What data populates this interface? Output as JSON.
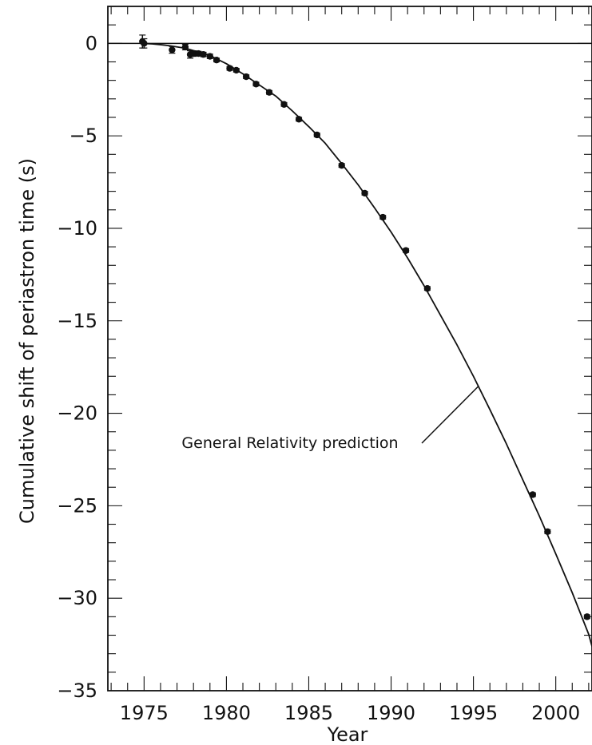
{
  "chart_data": {
    "type": "scatter",
    "title": "",
    "xlabel": "Year",
    "ylabel": "Cumulative shift of periastron time (s)",
    "xlim": [
      1972.8,
      2002.2
    ],
    "ylim": [
      -35,
      2
    ],
    "x_ticks": [
      1975,
      1980,
      1985,
      1990,
      1995,
      2000
    ],
    "x_tick_labels": [
      "1975",
      "1980",
      "1985",
      "1990",
      "1995",
      "2000"
    ],
    "y_ticks": [
      0,
      -5,
      -10,
      -15,
      -20,
      -25,
      -30,
      -35
    ],
    "y_tick_labels": [
      "0",
      "−5",
      "−10",
      "−15",
      "−20",
      "−25",
      "−30",
      "−35"
    ],
    "grid": false,
    "reference_line": {
      "y": 0
    },
    "annotation": {
      "text": "General Relativity prediction",
      "target_x": 1995.3
    },
    "observations": [
      {
        "x": 1974.9,
        "y": 0.1,
        "yerr": 0.35
      },
      {
        "x": 1975.0,
        "y": 0.0,
        "yerr": 0.25
      },
      {
        "x": 1976.7,
        "y": -0.35,
        "yerr": 0.18
      },
      {
        "x": 1977.5,
        "y": -0.2,
        "yerr": 0.15
      },
      {
        "x": 1977.8,
        "y": -0.6,
        "yerr": 0.2
      },
      {
        "x": 1978.0,
        "y": -0.55,
        "yerr": 0.15
      },
      {
        "x": 1978.3,
        "y": -0.55,
        "yerr": 0.12
      },
      {
        "x": 1978.6,
        "y": -0.6,
        "yerr": 0.12
      },
      {
        "x": 1979.0,
        "y": -0.7,
        "yerr": 0.12
      },
      {
        "x": 1979.4,
        "y": -0.9,
        "yerr": 0.1
      },
      {
        "x": 1980.2,
        "y": -1.35,
        "yerr": 0.1
      },
      {
        "x": 1980.6,
        "y": -1.45,
        "yerr": 0.1
      },
      {
        "x": 1981.2,
        "y": -1.8,
        "yerr": 0.1
      },
      {
        "x": 1981.8,
        "y": -2.2,
        "yerr": 0.1
      },
      {
        "x": 1982.6,
        "y": -2.65,
        "yerr": 0.1
      },
      {
        "x": 1983.5,
        "y": -3.3,
        "yerr": 0.1
      },
      {
        "x": 1984.4,
        "y": -4.1,
        "yerr": 0.1
      },
      {
        "x": 1985.5,
        "y": -4.95,
        "yerr": 0.1
      },
      {
        "x": 1987.0,
        "y": -6.6,
        "yerr": 0.1
      },
      {
        "x": 1988.4,
        "y": -8.1,
        "yerr": 0.1
      },
      {
        "x": 1989.5,
        "y": -9.4,
        "yerr": 0.1
      },
      {
        "x": 1990.9,
        "y": -11.2,
        "yerr": 0.1
      },
      {
        "x": 1992.2,
        "y": -13.25,
        "yerr": 0.1
      },
      {
        "x": 1998.6,
        "y": -24.4,
        "yerr": 0.1
      },
      {
        "x": 1999.5,
        "y": -26.4,
        "yerr": 0.1
      },
      {
        "x": 2001.9,
        "y": -31.0,
        "yerr": 0.1
      }
    ],
    "curve": {
      "x": [
        1974.8,
        1975.5,
        1976.0,
        1976.5,
        1977.0,
        1977.5,
        1978.0,
        1978.5,
        1979.0,
        1980.0,
        1981.0,
        1982.0,
        1983.0,
        1984.0,
        1985.0,
        1986.0,
        1987.0,
        1988.0,
        1989.0,
        1990.0,
        1991.0,
        1992.0,
        1993.0,
        1994.0,
        1995.0,
        1996.0,
        1997.0,
        1998.0,
        1999.0,
        2000.0,
        2001.0,
        2002.0,
        2002.2
      ],
      "y": [
        0.0,
        -0.03,
        -0.07,
        -0.12,
        -0.19,
        -0.26,
        -0.39,
        -0.5,
        -0.66,
        -1.1,
        -1.65,
        -2.25,
        -2.85,
        -3.65,
        -4.5,
        -5.4,
        -6.5,
        -7.65,
        -8.9,
        -10.2,
        -11.6,
        -13.1,
        -14.7,
        -16.3,
        -18.0,
        -19.8,
        -21.65,
        -23.6,
        -25.55,
        -27.6,
        -29.7,
        -31.95,
        -32.6
      ]
    }
  }
}
